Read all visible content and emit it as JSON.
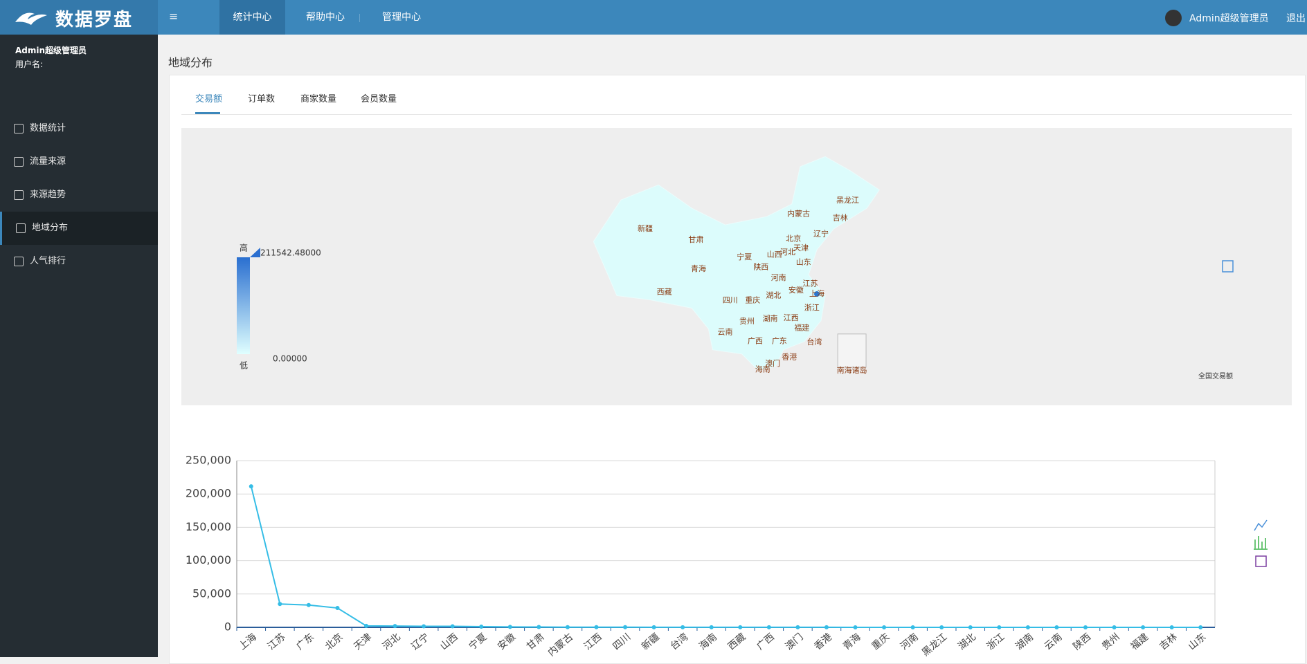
{
  "header": {
    "logo": "数据罗盘",
    "nav": [
      "统计中心",
      "帮助中心",
      "管理中心"
    ],
    "user": "Admin超级管理员",
    "logout": "退出"
  },
  "sidebar": {
    "user": "Admin超级管理员",
    "user_label": "用户名:",
    "menu": [
      "数据统计",
      "流量来源",
      "来源趋势",
      "地域分布",
      "人气排行"
    ]
  },
  "page_title": "地域分布",
  "tabs": [
    "交易额",
    "订单数",
    "商家数量",
    "会员数量"
  ],
  "map": {
    "high": "高",
    "low": "低",
    "max_label": "211542.48000",
    "min_label": "0.00000",
    "provinces": [
      "新疆",
      "甘肃",
      "青海",
      "西藏",
      "内蒙古",
      "黑龙江",
      "吉林",
      "辽宁",
      "北京",
      "天津",
      "河北",
      "山西",
      "宁夏",
      "陕西",
      "山东",
      "河南",
      "江苏",
      "安徽",
      "上海",
      "湖北",
      "四川",
      "重庆",
      "浙江",
      "贵州",
      "湖南",
      "江西",
      "福建",
      "云南",
      "广西",
      "广东",
      "台湾",
      "香港",
      "澳门",
      "海南"
    ],
    "islands": "南海诸岛",
    "caption": "全国交易额"
  },
  "chart_data": {
    "type": "line",
    "categories": [
      "上海",
      "江苏",
      "广东",
      "北京",
      "天津",
      "河北",
      "辽宁",
      "山西",
      "宁夏",
      "安徽",
      "甘肃",
      "内蒙古",
      "江西",
      "四川",
      "新疆",
      "台湾",
      "海南",
      "西藏",
      "广西",
      "澳门",
      "香港",
      "青海",
      "重庆",
      "河南",
      "黑龙江",
      "湖北",
      "浙江",
      "湖南",
      "云南",
      "陕西",
      "贵州",
      "福建",
      "吉林",
      "山东"
    ],
    "values": [
      211542.48,
      35000,
      33500,
      29000,
      2200,
      2000,
      1600,
      1500,
      1000,
      700,
      500,
      300,
      250,
      200,
      180,
      150,
      120,
      100,
      90,
      80,
      70,
      60,
      50,
      45,
      40,
      35,
      30,
      25,
      20,
      15,
      10,
      8,
      5,
      2
    ],
    "color": "#35bde6",
    "ylim": [
      0,
      250000
    ],
    "yticks": [
      0,
      {
        "value": 50000,
        "label": "50,000"
      },
      {
        "value": 100000,
        "label": "100,000"
      },
      {
        "value": 150000,
        "label": "150,000"
      },
      {
        "value": 200000,
        "label": "200,000"
      },
      {
        "value": 250000,
        "label": "250,000"
      }
    ],
    "grid": true
  }
}
